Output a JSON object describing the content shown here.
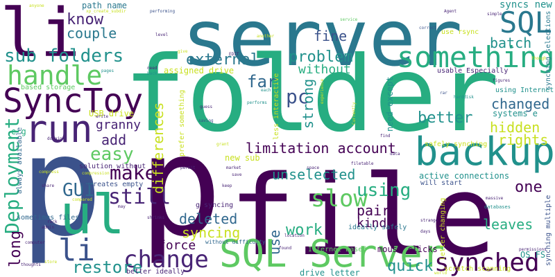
{
  "words": {
    "server": "server",
    "folder": "folder",
    "file": "file",
    "p1": "p",
    "p2": "p",
    "li_top": "li",
    "li_mid": "li",
    "ul": "ul",
    "synctoy": "SyncToy",
    "backup": "backup",
    "something": "something",
    "sql_server": "SQL Server",
    "sql": "SQL",
    "run": "run",
    "handle": "handle",
    "change": "change",
    "synched": "synched",
    "slow": "slow",
    "restore": "restore",
    "deployment": "Deployment",
    "easy": "easy",
    "make": "make",
    "still": "still",
    "gui": "GUI",
    "sub_folders": "sub folders",
    "know": "know",
    "couple": "couple",
    "external": "external",
    "problem": "problem",
    "without": "without",
    "fine": "fine",
    "far": "far",
    "pc": "pc",
    "strong": "strong",
    "batch": "batch",
    "changed": "changed",
    "better": "better",
    "hidden": "hidden",
    "rights": "rights",
    "granny": "granny",
    "add": "add",
    "limitation_account": "limitation account",
    "unselected": "unselected",
    "using": "using",
    "differences": "differences",
    "one": "one",
    "pairs": "pairs",
    "kinda": "kinda",
    "work": "work",
    "deleted": "deleted",
    "syncing": "syncing",
    "force": "force",
    "quick": "quick",
    "leaves": "leaves",
    "long": "long",
    "use": "use",
    "path_name": "path name",
    "syncs_new": "syncs new",
    "assigned_drive": "assigned drive",
    "usb_drive": "USB drive",
    "based_storage": "based storage",
    "solution_without": "solution without",
    "recreates_empty": "recreates empty",
    "new_sub": "new sub",
    "g_syncing": "g syncing",
    "sometimes_files": "sometimes files",
    "always_available": "always available",
    "active_connections": "active connections",
    "will_start": "will start",
    "ideally_safely": "ideally safely",
    "mouse_clicks": "mouse clicks",
    "drive_letter": "drive letter",
    "internet_based": "Internet based",
    "scratch_scanning": "scratch scanning",
    "better_ideally": "better ideally",
    "os_fs": "OS FS",
    "safely_synching": "safely synching",
    "systems_e": "systems e",
    "need_except": "need except",
    "use_rsync": "use rsync",
    "usable_especially": "usable Especially",
    "using_internet": "using Internet",
    "synching_selections": "synching selections",
    "synching_multiple": "synching multiple",
    "prefer_something": "prefer something",
    "less_interactive": "less interactive",
    "letter_changing": "letter changing",
    "without_difficulty": "without difficulty",
    "e_g": "e g",
    "tiny_xp": "xp_create_subdir",
    "tiny_anyone": "anyone",
    "tiny_performing": "performing",
    "tiny_service": "service",
    "tiny_agent": "Agent",
    "tiny_simple": "simple",
    "tiny_another": "another",
    "tiny_correct": "correct",
    "tiny_edit": "EDIT",
    "tiny_give": "give",
    "tiny_pages": "pages",
    "tiny_need": "need",
    "tiny_back": "back",
    "tiny_though": "though",
    "tiny_figures": "figures",
    "tiny_each": "each",
    "tiny_performs": "performs",
    "tiny_harddisk": "harddisk",
    "tiny_rar": "rar",
    "tiny_guess": "guess",
    "tiny_saving": "saving",
    "tiny_grant": "grant",
    "tiny_write": "write",
    "tiny_domain": "domain",
    "tiny_permit": "permit",
    "tiny_keep": "keep",
    "tiny_save": "save",
    "tiny_market": "market",
    "tiny_space": "space",
    "tiny_find": "find",
    "tiny_data": "data",
    "tiny_compress": "compress",
    "tiny_compression": "compression",
    "tiny_share": "share",
    "tiny_compared": "compared",
    "tiny_rack": "rack",
    "tiny_admin": "admin",
    "tiny_computer": "computer",
    "tiny_thoughts": "thoughts",
    "tiny_store": "store",
    "tiny_may": "may",
    "tiny_shrinks": "shrinks",
    "tiny_location": "location",
    "tiny_found": "found",
    "tiny_strange": "strange",
    "tiny_days": "days",
    "tiny_massive": "massive",
    "tiny_databases": "databases",
    "tiny_permissions": "permissions",
    "tiny_world": "world",
    "tiny_level": "level",
    "tiny_currently": "Currently",
    "tiny_experience": "experience",
    "tiny_filetable": "filetable"
  }
}
